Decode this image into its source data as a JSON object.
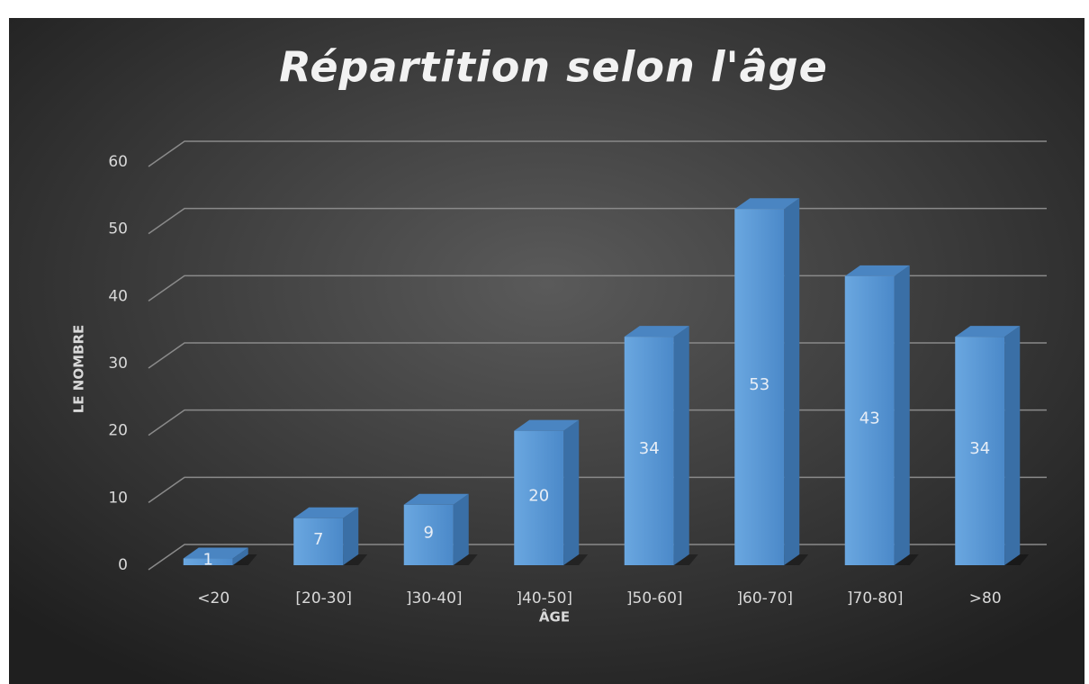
{
  "chart_data": {
    "type": "bar",
    "title": "Répartition selon l'âge",
    "xlabel": "ÂGE",
    "ylabel": "LE NOMBRE",
    "categories": [
      "<20",
      "[20-30]",
      "]30-40]",
      "]40-50]",
      "]50-60]",
      "]60-70]",
      "]70-80]",
      ">80"
    ],
    "values": [
      1,
      7,
      9,
      20,
      34,
      53,
      43,
      34
    ],
    "color": "#5b9bd5",
    "ylim": [
      0,
      60
    ],
    "yticks": [
      0,
      10,
      20,
      30,
      40,
      50,
      60
    ],
    "grid": true
  }
}
